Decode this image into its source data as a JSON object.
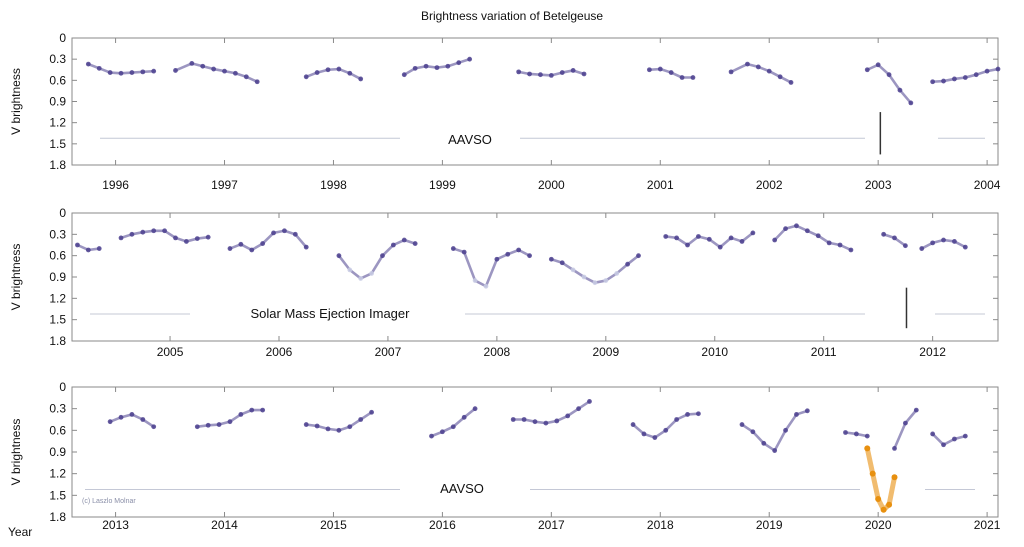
{
  "chart_data": {
    "type": "scatter",
    "title": "Brightness variation of Betelgeuse",
    "corner_label": "Year",
    "credit": "(c) Laszlo Molnar",
    "colors": {
      "points": "#4b3f8e",
      "points_faint": "#c9cde4",
      "dimming": "#e8900f",
      "marker": "#333333",
      "frame": "#8a8a8a"
    },
    "panels": [
      {
        "ylabel": "V brightness",
        "ylim": [
          0,
          1.8
        ],
        "yticks": [
          0,
          0.3,
          0.6,
          0.9,
          1.2,
          1.5,
          1.8
        ],
        "xlim": [
          1995.6,
          2004.1
        ],
        "xticks": [
          1996,
          1997,
          1998,
          1999,
          2000,
          2001,
          2002,
          2003,
          2004
        ],
        "annotation": "AAVSO",
        "marker_line": {
          "x": 2003.02,
          "y": [
            1.05,
            1.65
          ]
        },
        "series": [
          {
            "x": [
              1995.75,
              1995.85,
              1995.95,
              1996.05,
              1996.15,
              1996.25,
              1996.35
            ],
            "y": [
              0.37,
              0.43,
              0.49,
              0.5,
              0.49,
              0.48,
              0.47
            ]
          },
          {
            "x": [
              1996.55,
              1996.7,
              1996.8,
              1996.9,
              1997.0,
              1997.1,
              1997.2,
              1997.3
            ],
            "y": [
              0.46,
              0.36,
              0.4,
              0.44,
              0.47,
              0.5,
              0.55,
              0.62
            ]
          },
          {
            "x": [
              1997.75,
              1997.85,
              1997.95,
              1998.05,
              1998.15,
              1998.25
            ],
            "y": [
              0.55,
              0.49,
              0.45,
              0.44,
              0.5,
              0.58
            ]
          },
          {
            "x": [
              1998.65,
              1998.75,
              1998.85,
              1998.95,
              1999.05,
              1999.15,
              1999.25
            ],
            "y": [
              0.52,
              0.43,
              0.4,
              0.42,
              0.4,
              0.35,
              0.3
            ]
          },
          {
            "x": [
              1999.7,
              1999.8,
              1999.9,
              2000.0,
              2000.1,
              2000.2,
              2000.3
            ],
            "y": [
              0.48,
              0.51,
              0.52,
              0.53,
              0.49,
              0.46,
              0.51
            ]
          },
          {
            "x": [
              2000.9,
              2001.0,
              2001.1,
              2001.2,
              2001.3
            ],
            "y": [
              0.45,
              0.44,
              0.49,
              0.56,
              0.56
            ]
          },
          {
            "x": [
              2001.65,
              2001.8,
              2001.9,
              2002.0,
              2002.1,
              2002.2
            ],
            "y": [
              0.48,
              0.37,
              0.41,
              0.47,
              0.55,
              0.63
            ]
          },
          {
            "x": [
              2002.9,
              2003.0,
              2003.1,
              2003.2,
              2003.3
            ],
            "y": [
              0.45,
              0.38,
              0.52,
              0.74,
              0.92
            ]
          },
          {
            "x": [
              2003.5,
              2003.6,
              2003.7,
              2003.8,
              2003.9,
              2004.0,
              2004.1
            ],
            "y": [
              0.62,
              0.61,
              0.58,
              0.56,
              0.52,
              0.47,
              0.44
            ]
          }
        ]
      },
      {
        "ylabel": "V brightness",
        "ylim": [
          0,
          1.8
        ],
        "yticks": [
          0,
          0.3,
          0.6,
          0.9,
          1.2,
          1.5,
          1.8
        ],
        "xlim": [
          2004.1,
          2012.6
        ],
        "xticks": [
          2005,
          2006,
          2007,
          2008,
          2009,
          2010,
          2011,
          2012
        ],
        "annotation": "Solar Mass Ejection Imager",
        "marker_line": {
          "x": 2011.76,
          "y": [
            1.05,
            1.62
          ]
        },
        "series": [
          {
            "x": [
              2004.15,
              2004.25,
              2004.35
            ],
            "y": [
              0.45,
              0.52,
              0.5
            ]
          },
          {
            "x": [
              2004.55,
              2004.65,
              2004.75,
              2004.85,
              2004.95,
              2005.05,
              2005.15,
              2005.25,
              2005.35
            ],
            "y": [
              0.35,
              0.3,
              0.27,
              0.25,
              0.25,
              0.35,
              0.4,
              0.36,
              0.34
            ]
          },
          {
            "x": [
              2005.55,
              2005.65,
              2005.75,
              2005.85,
              2005.95,
              2006.05,
              2006.15,
              2006.25
            ],
            "y": [
              0.5,
              0.44,
              0.52,
              0.43,
              0.28,
              0.25,
              0.3,
              0.48
            ]
          },
          {
            "x": [
              2006.55,
              2006.65,
              2006.75,
              2006.85,
              2006.95,
              2007.05,
              2007.15,
              2007.25
            ],
            "y": [
              0.6,
              0.8,
              0.92,
              0.85,
              0.6,
              0.45,
              0.38,
              0.43
            ]
          },
          {
            "x": [
              2007.6,
              2007.7,
              2007.8,
              2007.9,
              2008.0,
              2008.1,
              2008.2,
              2008.3
            ],
            "y": [
              0.5,
              0.55,
              0.95,
              1.03,
              0.65,
              0.58,
              0.52,
              0.6
            ]
          },
          {
            "x": [
              2008.5,
              2008.6,
              2008.7,
              2008.8,
              2008.9,
              2009.0,
              2009.1,
              2009.2,
              2009.3
            ],
            "y": [
              0.65,
              0.7,
              0.8,
              0.9,
              0.98,
              0.95,
              0.85,
              0.72,
              0.6
            ]
          },
          {
            "x": [
              2009.55,
              2009.65,
              2009.75,
              2009.85,
              2009.95,
              2010.05,
              2010.15,
              2010.25,
              2010.35
            ],
            "y": [
              0.33,
              0.35,
              0.45,
              0.33,
              0.37,
              0.48,
              0.35,
              0.4,
              0.28
            ]
          },
          {
            "x": [
              2010.55,
              2010.65,
              2010.75,
              2010.85,
              2010.95,
              2011.05,
              2011.15,
              2011.25
            ],
            "y": [
              0.38,
              0.22,
              0.18,
              0.25,
              0.32,
              0.42,
              0.45,
              0.52
            ]
          },
          {
            "x": [
              2011.55,
              2011.65,
              2011.75
            ],
            "y": [
              0.3,
              0.35,
              0.46
            ]
          },
          {
            "x": [
              2011.9,
              2012.0,
              2012.1,
              2012.2,
              2012.3
            ],
            "y": [
              0.5,
              0.42,
              0.38,
              0.4,
              0.48
            ]
          }
        ]
      },
      {
        "ylabel": "V brightness",
        "ylim": [
          0,
          1.8
        ],
        "yticks": [
          0,
          0.3,
          0.6,
          0.9,
          1.2,
          1.5,
          1.8
        ],
        "xlim": [
          2012.6,
          2021.1
        ],
        "xticks": [
          2013,
          2014,
          2015,
          2016,
          2017,
          2018,
          2019,
          2020,
          2021
        ],
        "annotation": "AAVSO",
        "series": [
          {
            "x": [
              2012.95,
              2013.05,
              2013.15,
              2013.25,
              2013.35
            ],
            "y": [
              0.48,
              0.42,
              0.38,
              0.45,
              0.55
            ]
          },
          {
            "x": [
              2013.75,
              2013.85,
              2013.95,
              2014.05,
              2014.15,
              2014.25,
              2014.35
            ],
            "y": [
              0.55,
              0.53,
              0.52,
              0.48,
              0.38,
              0.32,
              0.32
            ]
          },
          {
            "x": [
              2014.75,
              2014.85,
              2014.95,
              2015.05,
              2015.15,
              2015.25,
              2015.35
            ],
            "y": [
              0.52,
              0.54,
              0.58,
              0.6,
              0.55,
              0.45,
              0.35
            ]
          },
          {
            "x": [
              2015.9,
              2016.0,
              2016.1,
              2016.2,
              2016.3
            ],
            "y": [
              0.68,
              0.62,
              0.55,
              0.42,
              0.3
            ]
          },
          {
            "x": [
              2016.65,
              2016.75,
              2016.85,
              2016.95,
              2017.05,
              2017.15,
              2017.25,
              2017.35
            ],
            "y": [
              0.45,
              0.45,
              0.48,
              0.5,
              0.47,
              0.4,
              0.3,
              0.2
            ]
          },
          {
            "x": [
              2017.75,
              2017.85,
              2017.95,
              2018.05,
              2018.15,
              2018.25,
              2018.35
            ],
            "y": [
              0.52,
              0.65,
              0.7,
              0.6,
              0.45,
              0.38,
              0.37
            ]
          },
          {
            "x": [
              2018.75,
              2018.85,
              2018.95,
              2019.05,
              2019.15,
              2019.25,
              2019.35
            ],
            "y": [
              0.52,
              0.62,
              0.78,
              0.88,
              0.6,
              0.38,
              0.33
            ]
          },
          {
            "x": [
              2019.7,
              2019.8,
              2019.9
            ],
            "y": [
              0.63,
              0.65,
              0.68
            ]
          },
          {
            "x": [
              2020.15,
              2020.25,
              2020.35
            ],
            "y": [
              0.85,
              0.5,
              0.32
            ]
          },
          {
            "x": [
              2020.5,
              2020.6,
              2020.7,
              2020.8
            ],
            "y": [
              0.65,
              0.8,
              0.72,
              0.68
            ]
          }
        ],
        "dimming_series": {
          "x": [
            2019.9,
            2019.95,
            2020.0,
            2020.05,
            2020.1,
            2020.15
          ],
          "y": [
            0.85,
            1.2,
            1.55,
            1.7,
            1.63,
            1.25
          ]
        }
      }
    ]
  }
}
